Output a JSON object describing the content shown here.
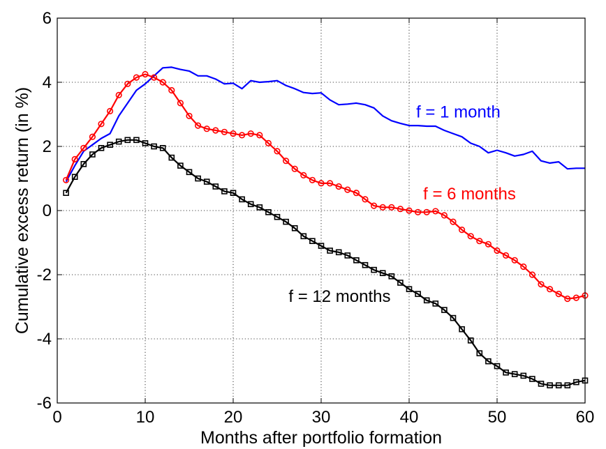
{
  "chart_data": {
    "type": "line",
    "title": "",
    "xlabel": "Months after portfolio formation",
    "ylabel": "Cumulative excess return (in %)",
    "xlim": [
      0,
      60
    ],
    "ylim": [
      -6,
      6
    ],
    "xticks": [
      0,
      10,
      20,
      30,
      40,
      50,
      60
    ],
    "yticks": [
      -6,
      -4,
      -2,
      0,
      2,
      4,
      6
    ],
    "xtick_labels": [
      "0",
      "10",
      "20",
      "30",
      "40",
      "50",
      "60"
    ],
    "ytick_labels": [
      "-6",
      "-4",
      "-2",
      "0",
      "2",
      "4",
      "6"
    ],
    "grid": true,
    "grid_style": "dotted",
    "legend": "none",
    "series": [
      {
        "name": "f = 1 month",
        "color": "#0000ff",
        "marker": "none",
        "x": [
          1,
          2,
          3,
          4,
          5,
          6,
          7,
          8,
          9,
          10,
          11,
          12,
          13,
          14,
          15,
          16,
          17,
          18,
          19,
          20,
          21,
          22,
          23,
          24,
          25,
          26,
          27,
          28,
          29,
          30,
          31,
          32,
          33,
          34,
          35,
          36,
          37,
          38,
          39,
          40,
          41,
          42,
          43,
          44,
          45,
          46,
          47,
          48,
          49,
          50,
          51,
          52,
          53,
          54,
          55,
          56,
          57,
          58,
          59,
          60
        ],
        "values": [
          0.9,
          1.4,
          1.85,
          2.05,
          2.25,
          2.4,
          2.95,
          3.35,
          3.75,
          3.95,
          4.2,
          4.45,
          4.47,
          4.4,
          4.35,
          4.2,
          4.2,
          4.1,
          3.95,
          3.97,
          3.8,
          4.05,
          4.0,
          4.02,
          4.05,
          3.9,
          3.8,
          3.68,
          3.65,
          3.67,
          3.45,
          3.3,
          3.32,
          3.35,
          3.3,
          3.2,
          2.95,
          2.8,
          2.72,
          2.65,
          2.65,
          2.63,
          2.63,
          2.5,
          2.4,
          2.3,
          2.1,
          2.0,
          1.8,
          1.88,
          1.8,
          1.7,
          1.75,
          1.85,
          1.55,
          1.48,
          1.52,
          1.3,
          1.32,
          1.32
        ]
      },
      {
        "name": "f = 6 months",
        "color": "#ff0000",
        "marker": "circle",
        "x": [
          1,
          2,
          3,
          4,
          5,
          6,
          7,
          8,
          9,
          10,
          11,
          12,
          13,
          14,
          15,
          16,
          17,
          18,
          19,
          20,
          21,
          22,
          23,
          24,
          25,
          26,
          27,
          28,
          29,
          30,
          31,
          32,
          33,
          34,
          35,
          36,
          37,
          38,
          39,
          40,
          41,
          42,
          43,
          44,
          45,
          46,
          47,
          48,
          49,
          50,
          51,
          52,
          53,
          54,
          55,
          56,
          57,
          58,
          59,
          60
        ],
        "values": [
          0.95,
          1.6,
          1.95,
          2.3,
          2.7,
          3.1,
          3.6,
          3.95,
          4.15,
          4.25,
          4.15,
          4.0,
          3.75,
          3.35,
          2.95,
          2.65,
          2.55,
          2.5,
          2.45,
          2.4,
          2.35,
          2.4,
          2.35,
          2.1,
          1.85,
          1.55,
          1.3,
          1.1,
          0.95,
          0.85,
          0.85,
          0.75,
          0.65,
          0.55,
          0.35,
          0.15,
          0.1,
          0.1,
          0.05,
          0.0,
          -0.05,
          -0.05,
          -0.02,
          -0.15,
          -0.35,
          -0.6,
          -0.8,
          -0.95,
          -1.05,
          -1.25,
          -1.4,
          -1.55,
          -1.75,
          -2.0,
          -2.3,
          -2.45,
          -2.6,
          -2.75,
          -2.72,
          -2.65
        ]
      },
      {
        "name": "f = 12 months",
        "color": "#000000",
        "marker": "square",
        "x": [
          1,
          2,
          3,
          4,
          5,
          6,
          7,
          8,
          9,
          10,
          11,
          12,
          13,
          14,
          15,
          16,
          17,
          18,
          19,
          20,
          21,
          22,
          23,
          24,
          25,
          26,
          27,
          28,
          29,
          30,
          31,
          32,
          33,
          34,
          35,
          36,
          37,
          38,
          39,
          40,
          41,
          42,
          43,
          44,
          45,
          46,
          47,
          48,
          49,
          50,
          51,
          52,
          53,
          54,
          55,
          56,
          57,
          58,
          59,
          60
        ],
        "values": [
          0.55,
          1.05,
          1.45,
          1.75,
          1.95,
          2.05,
          2.15,
          2.2,
          2.2,
          2.1,
          2.0,
          1.95,
          1.65,
          1.4,
          1.2,
          1.0,
          0.9,
          0.75,
          0.6,
          0.55,
          0.35,
          0.2,
          0.1,
          -0.05,
          -0.2,
          -0.35,
          -0.55,
          -0.8,
          -0.95,
          -1.1,
          -1.25,
          -1.3,
          -1.4,
          -1.55,
          -1.7,
          -1.85,
          -1.95,
          -2.05,
          -2.25,
          -2.45,
          -2.6,
          -2.8,
          -2.9,
          -3.1,
          -3.35,
          -3.7,
          -4.05,
          -4.45,
          -4.7,
          -4.85,
          -5.05,
          -5.1,
          -5.15,
          -5.25,
          -5.4,
          -5.45,
          -5.45,
          -5.45,
          -5.35,
          -5.3
        ]
      }
    ],
    "annotations": [
      {
        "text": "f = 1 month",
        "color": "#0000ff",
        "x": 40.8,
        "y": 2.9
      },
      {
        "text": "f = 6 months",
        "color": "#ff0000",
        "x": 41.6,
        "y": 0.35
      },
      {
        "text": "f = 12 months",
        "color": "#000000",
        "x": 26.3,
        "y": -2.85
      }
    ]
  }
}
